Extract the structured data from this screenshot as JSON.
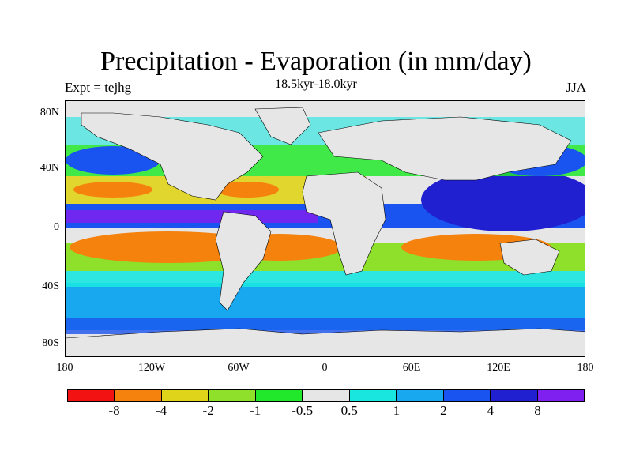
{
  "title": "Precipitation - Evaporation (in mm/day)",
  "subtitle": "18.5kyr-18.0kyr",
  "experiment_label": "Expt = tejhg",
  "season_label": "JJA",
  "y_ticks": [
    "80N",
    "40N",
    "0",
    "40S",
    "80S"
  ],
  "x_ticks": [
    "180",
    "120W",
    "60W",
    "0",
    "60E",
    "120E",
    "180"
  ],
  "colorbar": {
    "colors": [
      "#f21212",
      "#f5820d",
      "#e0d41a",
      "#8ee02a",
      "#22e82c",
      "#e6e6e6",
      "#1ae6e0",
      "#18a8f0",
      "#1a54f0",
      "#2020d0",
      "#8020f0"
    ],
    "labels": [
      "-8",
      "-4",
      "-2",
      "-1",
      "-0.5",
      "0.5",
      "1",
      "2",
      "4",
      "8"
    ]
  }
}
